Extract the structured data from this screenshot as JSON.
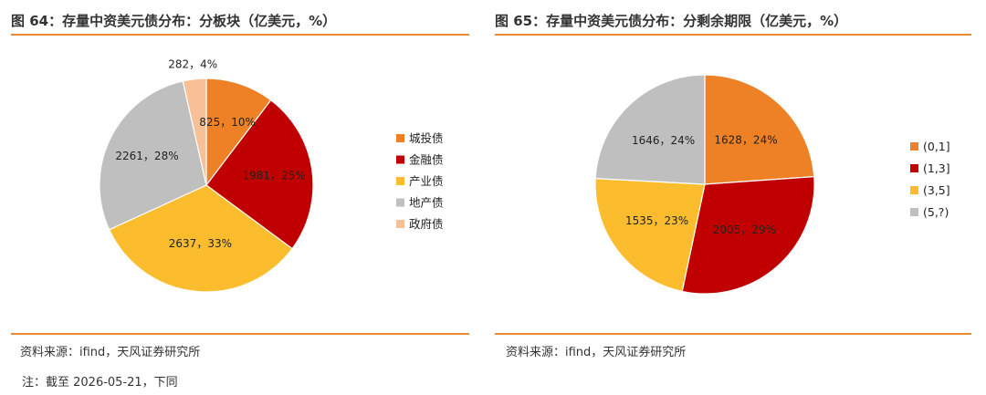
{
  "panels": [
    {
      "title": "图 64：存量中资美元债分布：分板块（亿美元，%）",
      "source": "资料来源：ifind，天风证券研究所"
    },
    {
      "title": "图 65：存量中资美元债分布：分剩余期限（亿美元，%）",
      "source": "资料来源：ifind，天风证券研究所"
    }
  ],
  "note": "注：截至 2026-05-21，下同",
  "chart_data": [
    {
      "type": "pie",
      "title": "图 64：存量中资美元债分布：分板块（亿美元，%）",
      "start_angle_deg": 0,
      "direction": "clockwise",
      "legend_position": "right",
      "slices": [
        {
          "name": "城投债",
          "value": 825,
          "label": "825，10%",
          "color": "#ee8126"
        },
        {
          "name": "金融债",
          "value": 1981,
          "label": "1981，25%",
          "color": "#c00000"
        },
        {
          "name": "产业债",
          "value": 2637,
          "label": "2637，33%",
          "color": "#fbbd2d"
        },
        {
          "name": "地产债",
          "value": 2261,
          "label": "2261，28%",
          "color": "#bfbfbf"
        },
        {
          "name": "政府债",
          "value": 282,
          "label": "282，4%",
          "color": "#f8c097"
        }
      ]
    },
    {
      "type": "pie",
      "title": "图 65：存量中资美元债分布：分剩余期限（亿美元，%）",
      "start_angle_deg": 0,
      "direction": "clockwise",
      "legend_position": "right",
      "slices": [
        {
          "name": "(0,1]",
          "value": 1628,
          "label": "1628，24%",
          "color": "#ee8126"
        },
        {
          "name": "(1,3]",
          "value": 2005,
          "label": "2005，29%",
          "color": "#c00000"
        },
        {
          "name": "(3,5]",
          "value": 1535,
          "label": "1535，23%",
          "color": "#fbbd2d"
        },
        {
          "name": "(5,?)",
          "value": 1646,
          "label": "1646，24%",
          "color": "#bfbfbf"
        }
      ]
    }
  ]
}
